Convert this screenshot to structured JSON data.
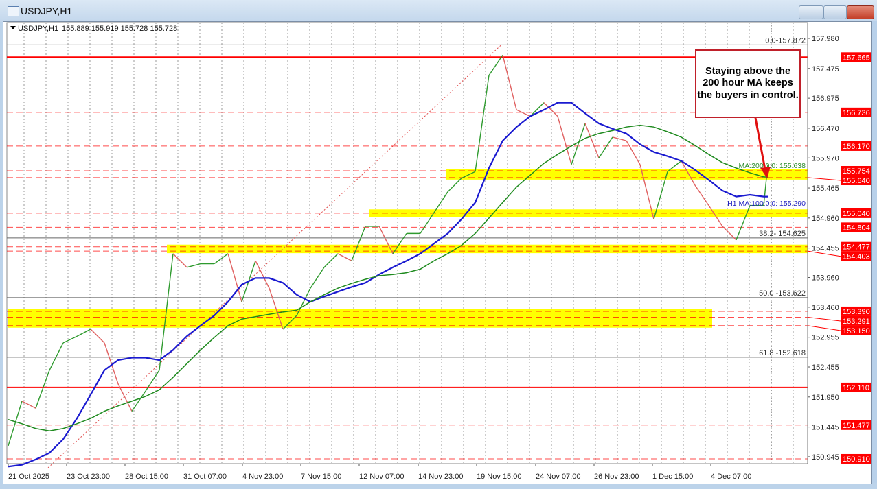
{
  "window": {
    "title": "USDJPY,H1",
    "icon": "chart-window-icon",
    "buttons": [
      "minimize",
      "maximize",
      "close"
    ]
  },
  "chart_header": {
    "symbol": "USDJPY,H1",
    "ohlc": "155.889 155.919 155.728 155.728"
  },
  "annotation": {
    "text": "Staying above the 200 hour MA keeps the buyers in control.",
    "border_color": "#c0202a"
  },
  "chart_data": {
    "type": "line",
    "title": "",
    "ylim": [
      150.8,
      157.98
    ],
    "grid": true,
    "y_ticks": [
      "157.980",
      "157.475",
      "156.975",
      "156.470",
      "155.970",
      "155.465",
      "154.960",
      "154.455",
      "153.960",
      "153.460",
      "152.955",
      "152.455",
      "151.950",
      "151.445",
      "150.945"
    ],
    "x_labels": [
      "21 Oct 2025",
      "23 Oct 23:00",
      "28 Oct 15:00",
      "31 Oct 07:00",
      "4 Nov 23:00",
      "7 Nov 15:00",
      "12 Nov 07:00",
      "14 Nov 23:00",
      "19 Nov 15:00",
      "24 Nov 07:00",
      "26 Nov 23:00",
      "1 Dec 15:00",
      "4 Dec 07:00"
    ],
    "price_approx": [
      151.13,
      151.88,
      151.76,
      152.4,
      152.86,
      152.97,
      153.09,
      152.86,
      152.17,
      151.71,
      152.05,
      152.4,
      154.36,
      154.13,
      154.19,
      154.19,
      154.36,
      153.55,
      154.24,
      153.78,
      153.09,
      153.32,
      153.78,
      154.13,
      154.36,
      154.24,
      154.82,
      154.82,
      154.36,
      154.7,
      154.7,
      155.05,
      155.4,
      155.63,
      155.74,
      157.36,
      157.7,
      156.78,
      156.67,
      156.9,
      156.67,
      155.86,
      156.55,
      155.97,
      156.32,
      156.26,
      155.86,
      154.94,
      155.74,
      155.92,
      155.51,
      155.17,
      154.82,
      154.59,
      155.17,
      155.17,
      155.86
    ],
    "series": [
      {
        "name": "H1 MA:100:0:0",
        "label": "H1 MA:100:0:0: 155.290",
        "color": "#1a1ad0",
        "values": [
          150.78,
          150.81,
          150.9,
          151.01,
          151.24,
          151.59,
          151.99,
          152.4,
          152.57,
          152.61,
          152.61,
          152.57,
          152.74,
          152.97,
          153.15,
          153.32,
          153.55,
          153.84,
          153.95,
          153.95,
          153.87,
          153.67,
          153.55,
          153.64,
          153.72,
          153.8,
          153.87,
          154.01,
          154.13,
          154.24,
          154.36,
          154.53,
          154.7,
          154.94,
          155.22,
          155.8,
          156.26,
          156.49,
          156.67,
          156.78,
          156.9,
          156.9,
          156.72,
          156.55,
          156.46,
          156.38,
          156.2,
          156.07,
          156.0,
          155.92,
          155.77,
          155.6,
          155.42,
          155.32,
          155.35,
          155.32,
          155.32
        ]
      },
      {
        "name": "MA:200:0:0",
        "label": "MA:200:0:0: 155.638",
        "color": "#1e8a1e",
        "values": [
          151.57,
          151.5,
          151.42,
          151.38,
          151.42,
          151.5,
          151.59,
          151.71,
          151.8,
          151.88,
          151.96,
          152.07,
          152.28,
          152.51,
          152.74,
          152.95,
          153.15,
          153.26,
          153.3,
          153.34,
          153.38,
          153.41,
          153.55,
          153.67,
          153.78,
          153.86,
          153.93,
          153.99,
          154.01,
          154.04,
          154.1,
          154.24,
          154.36,
          154.5,
          154.7,
          154.96,
          155.22,
          155.48,
          155.68,
          155.88,
          156.03,
          156.17,
          156.3,
          156.38,
          156.43,
          156.49,
          156.52,
          156.49,
          156.41,
          156.32,
          156.18,
          156.03,
          155.89,
          155.8,
          155.72,
          155.65,
          155.65
        ]
      }
    ],
    "levels": [
      {
        "price": 157.665,
        "label": "157.665",
        "style": "solid"
      },
      {
        "price": 156.736,
        "label": "156.736",
        "style": "dashed"
      },
      {
        "price": 156.17,
        "label": "156.170",
        "style": "dashed"
      },
      {
        "price": 155.754,
        "label": "155.754",
        "style": "dashed"
      },
      {
        "price": 155.64,
        "label": "155.640",
        "style": "dashed"
      },
      {
        "price": 155.04,
        "label": "155.040",
        "style": "dashed"
      },
      {
        "price": 154.804,
        "label": "154.804",
        "style": "dashed"
      },
      {
        "price": 154.477,
        "label": "154.477",
        "style": "dashed"
      },
      {
        "price": 154.403,
        "label": "154.403",
        "style": "dashed"
      },
      {
        "price": 153.39,
        "label": "153.390",
        "style": "dashed"
      },
      {
        "price": 153.291,
        "label": "153.291",
        "style": "dashed"
      },
      {
        "price": 153.15,
        "label": "153.150",
        "style": "dashed"
      },
      {
        "price": 152.11,
        "label": "152.110",
        "style": "solid"
      },
      {
        "price": 151.477,
        "label": "151.477",
        "style": "dashed"
      },
      {
        "price": 150.91,
        "label": "150.910",
        "style": "dashed"
      }
    ],
    "bands": [
      {
        "high": 155.754,
        "low": 155.64,
        "from": "14 Nov 23:00"
      },
      {
        "high": 155.07,
        "low": 155.01,
        "from": "12 Nov 07:00"
      },
      {
        "high": 154.477,
        "low": 154.403,
        "from": "28 Oct 15:00"
      },
      {
        "high": 153.39,
        "low": 153.15,
        "from": "21 Oct 2025",
        "to": "4 Dec 07:00"
      }
    ],
    "fibonacci": [
      {
        "label": "0.0-157.872",
        "price": 157.872
      },
      {
        "label": "38.2- 154.625",
        "price": 154.625
      },
      {
        "label": "50.0 -153.622",
        "price": 153.622
      },
      {
        "label": "61.8 -152.618",
        "price": 152.618
      }
    ],
    "colors": {
      "level": "#ff0000",
      "band": "#ffff00",
      "up": "#2e9a2e",
      "down": "#e06060",
      "fib": "#555555"
    }
  }
}
